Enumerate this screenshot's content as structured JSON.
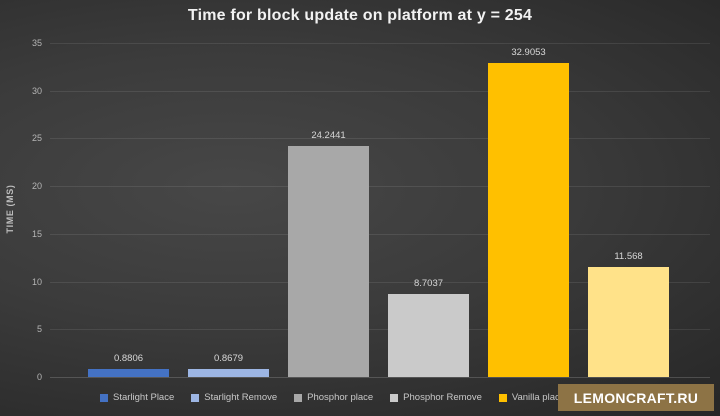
{
  "title": "Time for block update on platform at y = 254",
  "watermark": "LEMONCRAFT.RU",
  "chart_data": {
    "type": "bar",
    "title": "Time for block update on platform at y = 254",
    "xlabel": "",
    "ylabel": "TIME (MS)",
    "ylim": [
      0,
      35
    ],
    "yticks": [
      0,
      5,
      10,
      15,
      20,
      25,
      30,
      35
    ],
    "grid": true,
    "legend_position": "bottom",
    "series": [
      {
        "name": "Starlight Place",
        "value": 0.8806,
        "data_label": "0.8806",
        "color": "#4472C4"
      },
      {
        "name": "Starlight Remove",
        "value": 0.8679,
        "data_label": "0.8679",
        "color": "#9DB6E4"
      },
      {
        "name": "Phosphor place",
        "value": 24.2441,
        "data_label": "24.2441",
        "color": "#A8A8A8"
      },
      {
        "name": "Phosphor Remove",
        "value": 8.7037,
        "data_label": "8.7037",
        "color": "#CACACA"
      },
      {
        "name": "Vanilla place",
        "value": 32.9053,
        "data_label": "32.9053",
        "color": "#FFC000"
      },
      {
        "name": "",
        "value": 11.568,
        "data_label": "11.568",
        "color": "#FFE289"
      }
    ]
  }
}
